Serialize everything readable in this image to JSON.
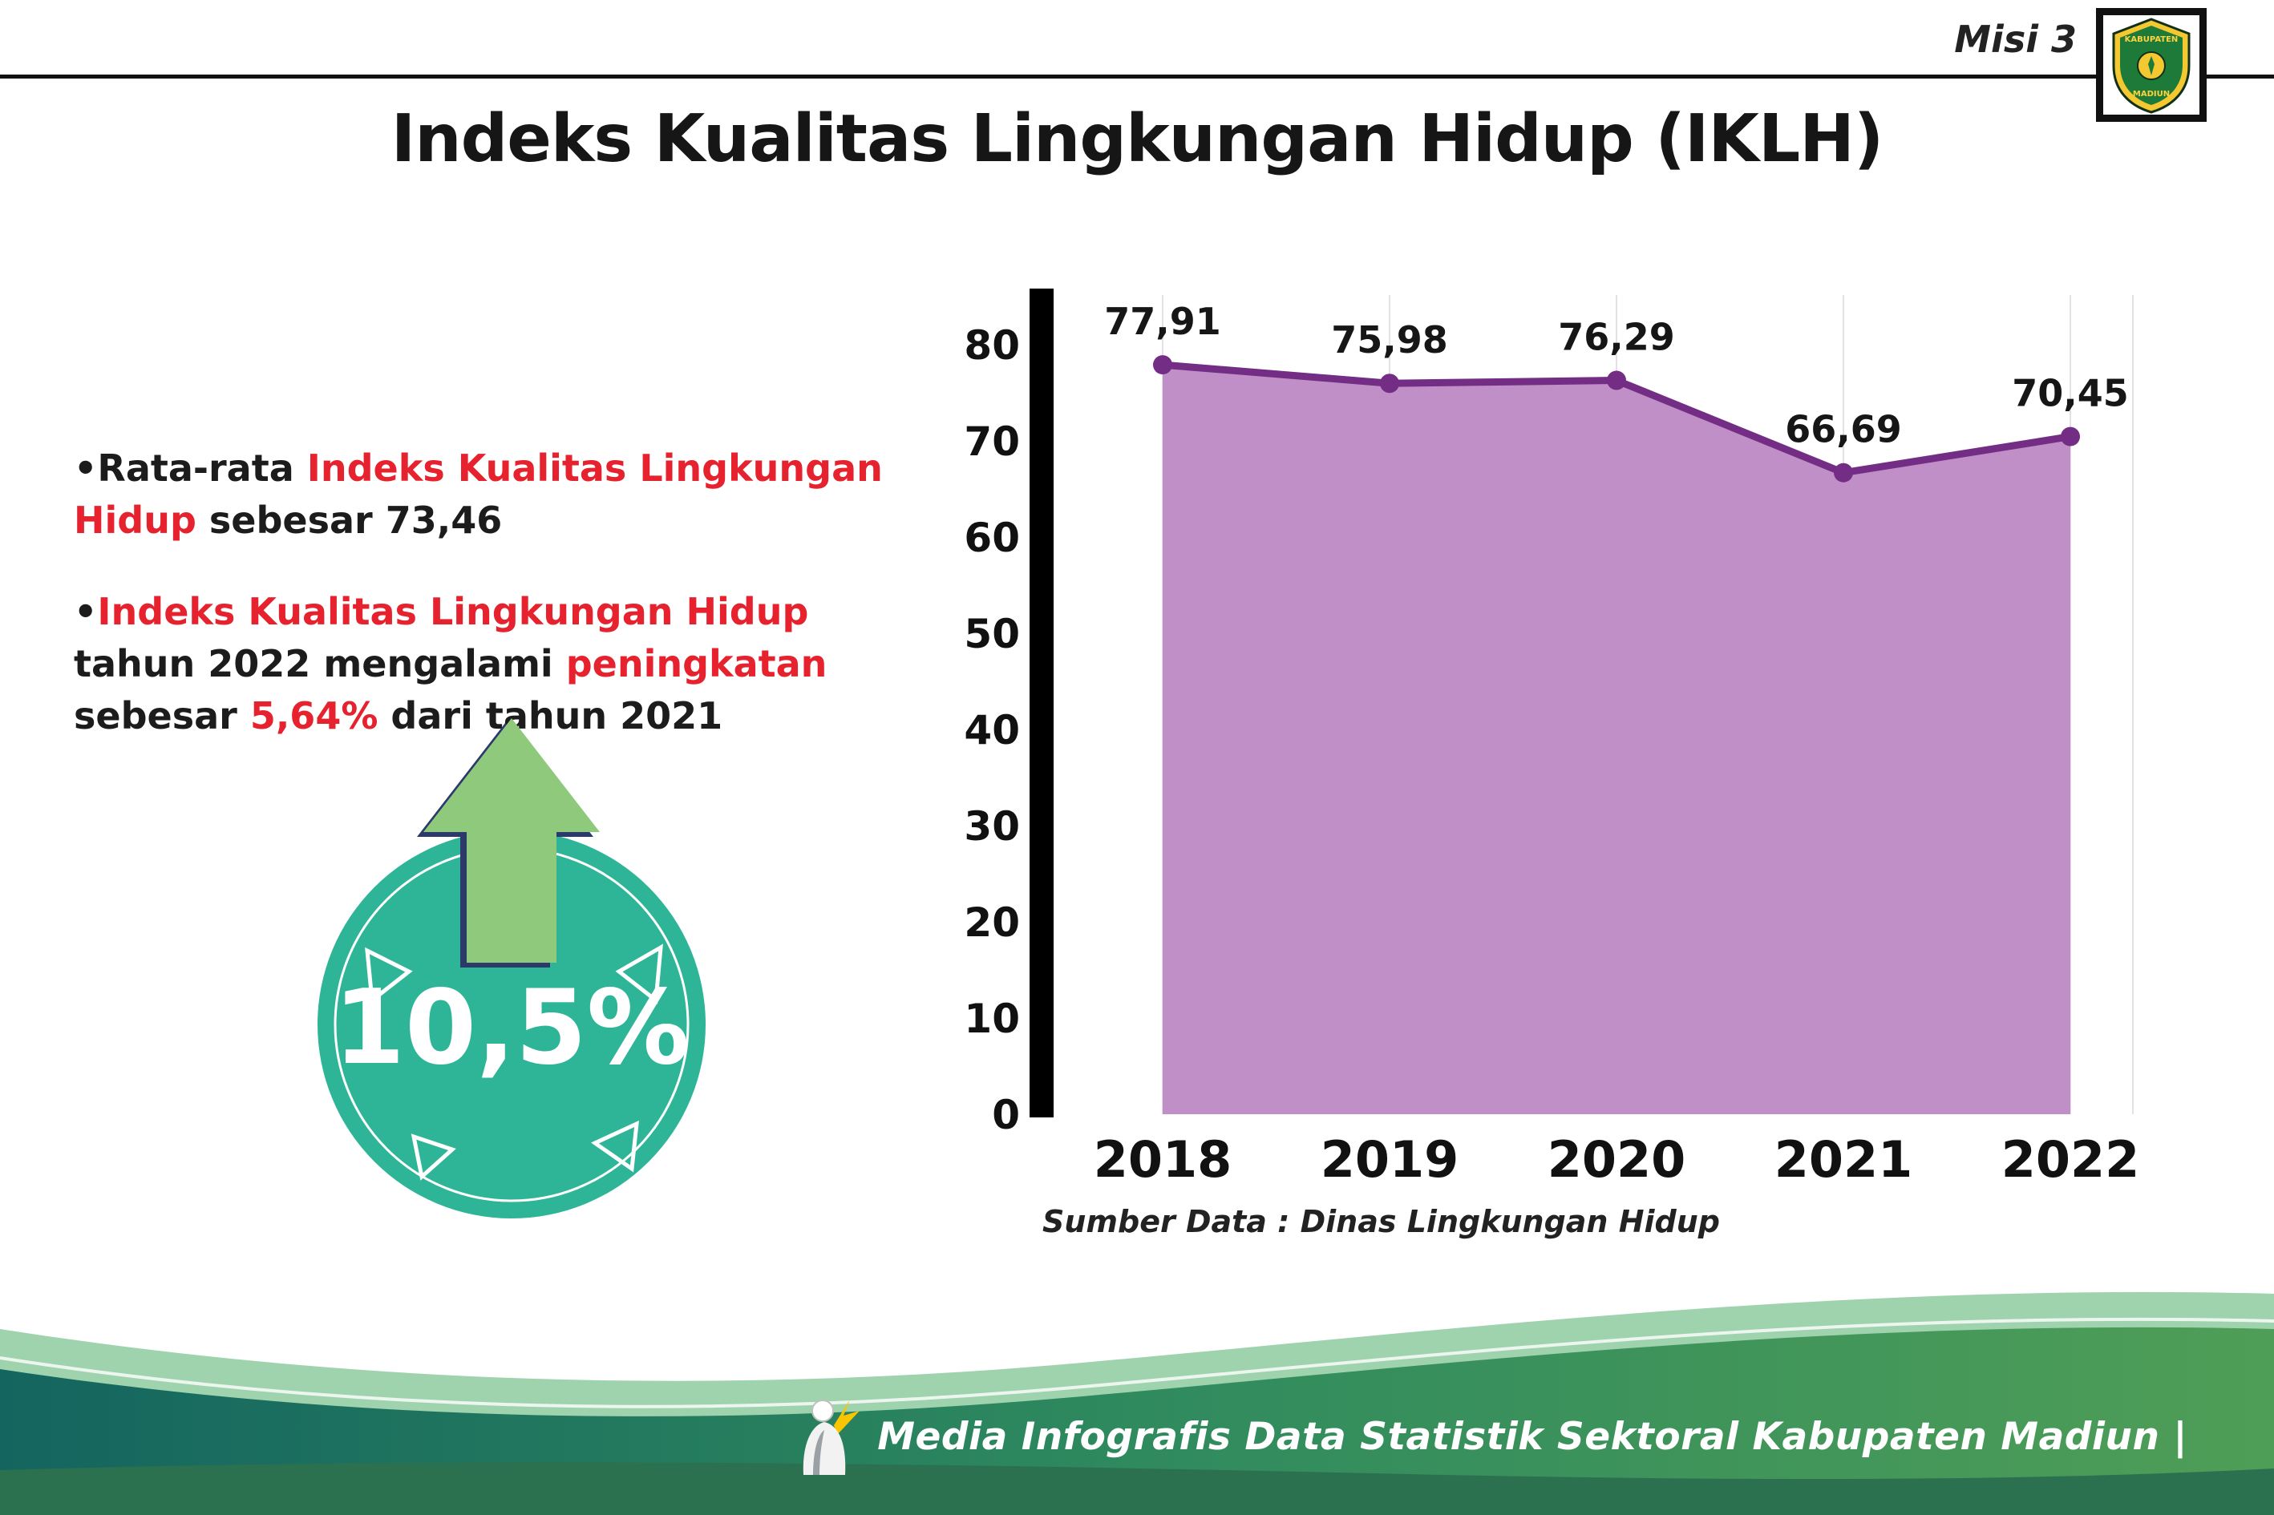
{
  "header": {
    "misi": "Misi 3"
  },
  "logo": {
    "icon": "kabupaten-madiun-crest",
    "text_top": "KABUPATEN",
    "text_bottom": "MADIUN"
  },
  "title": "Indeks Kualitas Lingkungan Hidup (IKLH)",
  "bullets": {
    "glyph": "•",
    "b1": {
      "t1": "Rata-rata ",
      "t2": "Indeks Kualitas Lingkungan Hidup",
      "t3": " sebesar 73,46"
    },
    "b2": {
      "t1": "Indeks Kualitas Lingkungan Hidup",
      "t2": " tahun 2022 mengalami ",
      "t3": "peningkatan",
      "t4": " sebesar ",
      "t5": "5,64%",
      "t6": " dari tahun 2021"
    }
  },
  "badge": {
    "value": "10,5%",
    "circle_color": "#2eb598",
    "arrow_color": "#8fc97c",
    "icon": "up-arrow-icon"
  },
  "chart_data": {
    "type": "area",
    "title": "Indeks Kualitas Lingkungan Hidup (IKLH)",
    "categories": [
      "2018",
      "2019",
      "2020",
      "2021",
      "2022"
    ],
    "values": [
      77.91,
      75.98,
      76.29,
      66.69,
      70.45
    ],
    "value_labels": [
      "77,91",
      "75,98",
      "76,29",
      "66,69",
      "70,45"
    ],
    "xlabel": "",
    "ylabel": "",
    "ylim": [
      0,
      80
    ],
    "yticks": [
      0,
      10,
      20,
      30,
      40,
      50,
      60,
      70,
      80
    ],
    "grid": "faint-vertical",
    "legend": "none",
    "fill_color": "#c08fc7",
    "line_color": "#742d84",
    "source": "Sumber Data : Dinas Lingkungan Hidup"
  },
  "footer": {
    "text": "Media Infografis Data Statistik Sektoral Kabupaten Madiun |"
  }
}
